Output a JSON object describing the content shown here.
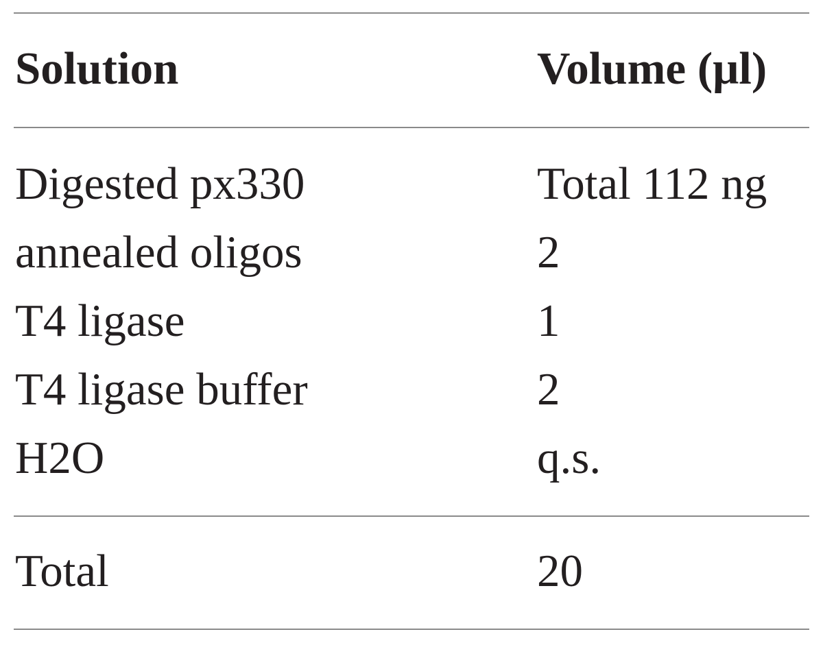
{
  "table": {
    "header": [
      "Solution",
      "Volume (μl)"
    ],
    "rows": [
      [
        "Digested px330",
        "Total 112 ng"
      ],
      [
        "annealed oligos",
        "2"
      ],
      [
        "T4 ligase",
        "1"
      ],
      [
        "T4 ligase buffer",
        "2"
      ],
      [
        "H2O",
        "q.s."
      ]
    ],
    "total": [
      "Total",
      "20"
    ]
  }
}
